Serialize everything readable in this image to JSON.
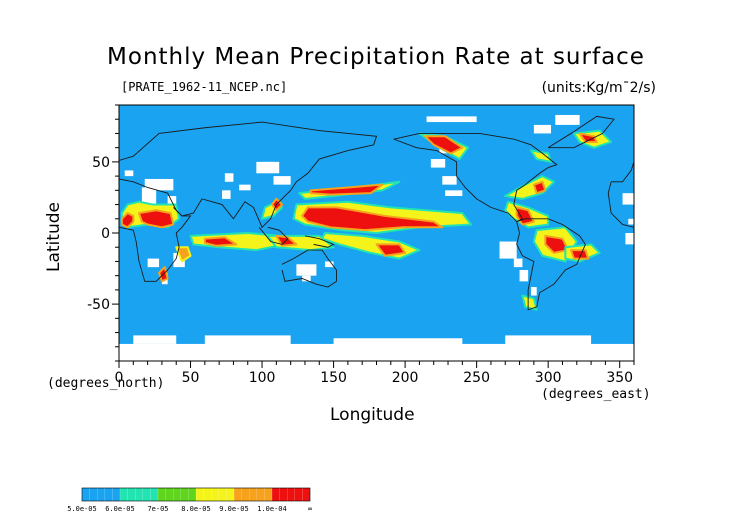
{
  "chart_data": {
    "type": "heatmap",
    "title": "Monthly Mean Precipitation Rate at surface",
    "subtitle_left": "[PRATE_1962-11_NCEP.nc]",
    "subtitle_right": "(units:Kg/m¯2/s)",
    "xlabel": "Longitude",
    "ylabel": "Latitude",
    "x_note": "(degrees_north)",
    "x_unit_note": "(degrees_east)",
    "xlim": [
      0,
      360
    ],
    "ylim": [
      -90,
      90
    ],
    "x_ticks": [
      0,
      50,
      100,
      150,
      200,
      250,
      300,
      350
    ],
    "y_ticks": [
      50,
      0,
      -50
    ],
    "grid": false,
    "colorbar": {
      "labels": [
        "5.0e-05",
        "6.0e-05",
        "7e-05",
        "8.0e-05",
        "9.0e-05",
        "1.0e-04",
        "∞"
      ],
      "colors": [
        "#1aa3f0",
        "#22e4b2",
        "#5fd51d",
        "#f4f41b",
        "#f6a21c",
        "#ee0f0f"
      ],
      "below_min_color": "#ffffff"
    },
    "colors": {
      "ocean_background": "#1aa3f0",
      "dry": "#ffffff",
      "low": "#22e4b2",
      "mid": "#5fd51d",
      "moderate": "#f4f41b",
      "high": "#f6a21c",
      "max": "#ee0f0f",
      "coastline": "#1a1a1a"
    }
  }
}
